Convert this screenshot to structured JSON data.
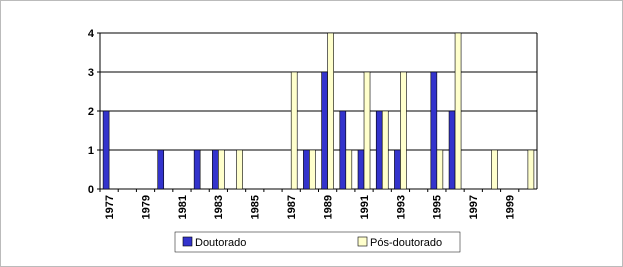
{
  "chart_data": {
    "type": "bar",
    "categories": [
      "1977",
      null,
      "1979",
      null,
      "1981",
      null,
      "1983",
      null,
      "1985",
      null,
      "1987",
      null,
      "1989",
      null,
      "1991",
      null,
      "1993",
      null,
      "1995",
      null,
      "1997",
      null,
      "1999",
      null
    ],
    "series": [
      {
        "name": "Doutorado",
        "color": "#3333cc",
        "values": [
          2,
          0,
          0,
          1,
          0,
          1,
          1,
          0,
          0,
          0,
          0,
          1,
          3,
          2,
          1,
          2,
          1,
          0,
          3,
          2,
          0,
          0,
          0,
          0
        ]
      },
      {
        "name": "Pós-doutorado",
        "color": "#ffffcc",
        "values": [
          0,
          0,
          0,
          0,
          0,
          0,
          1,
          1,
          0,
          0,
          3,
          1,
          4,
          1,
          3,
          2,
          3,
          0,
          1,
          4,
          0,
          1,
          0,
          1
        ]
      }
    ],
    "ylim": [
      0,
      4
    ],
    "yticks": [
      0,
      1,
      2,
      3,
      4
    ],
    "grid": true,
    "legend": "bottom"
  }
}
